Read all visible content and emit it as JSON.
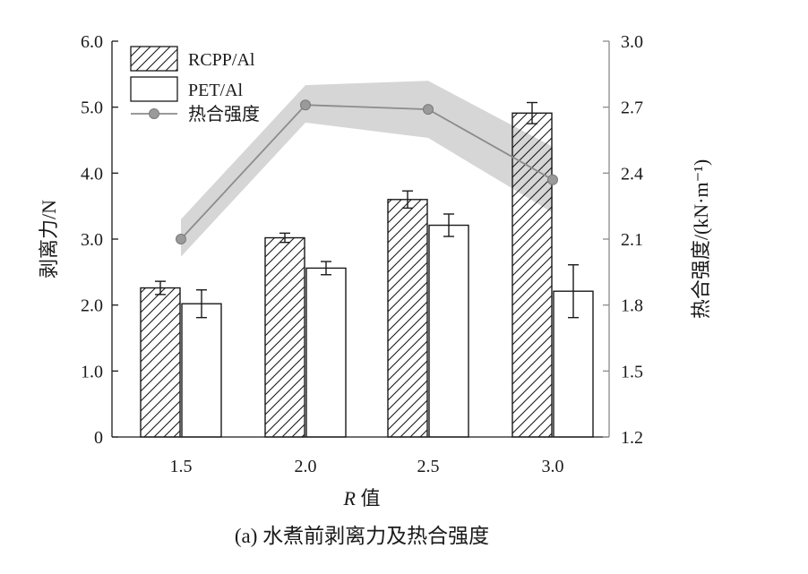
{
  "chart_data": {
    "type": "bar",
    "title": "",
    "caption": "(a) 水煮前剥离力及热合强度",
    "xlabel_italic": "R",
    "xlabel_rest": " 值",
    "ylabel_left": "剥离力/N",
    "ylabel_right": "热合强度/(kN·m⁻¹)",
    "categories": [
      "1.5",
      "2.0",
      "2.5",
      "3.0"
    ],
    "ylim_left": [
      0,
      6.0
    ],
    "yticks_left": [
      "0",
      "1.0",
      "2.0",
      "3.0",
      "4.0",
      "5.0",
      "6.0"
    ],
    "ylim_right": [
      1.2,
      3.0
    ],
    "yticks_right": [
      "1.2",
      "1.5",
      "1.8",
      "2.1",
      "2.4",
      "2.7",
      "3.0"
    ],
    "grid": false,
    "legend_position": "top-left",
    "series": [
      {
        "name": "RCPP/Al",
        "kind": "bar",
        "pattern": "hatch",
        "axis": "left",
        "values": [
          2.26,
          3.02,
          3.6,
          4.91
        ],
        "errors": [
          0.1,
          0.07,
          0.13,
          0.16
        ]
      },
      {
        "name": "PET/Al",
        "kind": "bar",
        "pattern": "none",
        "axis": "left",
        "values": [
          2.02,
          2.56,
          3.21,
          2.21
        ],
        "errors": [
          0.21,
          0.1,
          0.17,
          0.4
        ]
      },
      {
        "name": "热合强度",
        "kind": "line",
        "axis": "right",
        "values": [
          2.1,
          2.71,
          2.69,
          2.37
        ],
        "band_upper": [
          2.19,
          2.8,
          2.82,
          2.52
        ],
        "band_lower": [
          2.02,
          2.63,
          2.56,
          2.22
        ]
      }
    ],
    "colors": {
      "line": "#8c8c8c",
      "marker": "#9a9a9a",
      "band": "#d6d6d6",
      "axis": "#1a1a1a",
      "right_axis": "#8c8c8c"
    }
  }
}
